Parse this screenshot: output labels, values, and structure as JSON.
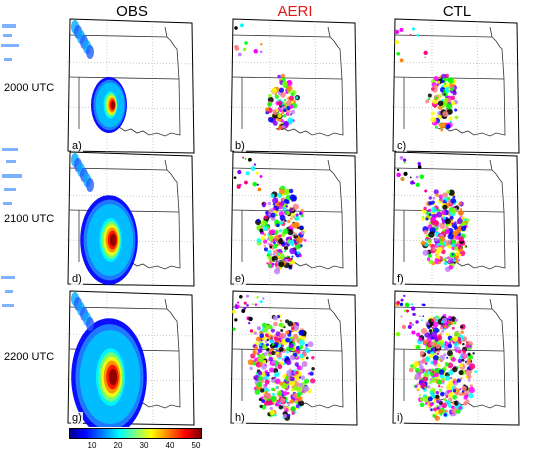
{
  "columns": {
    "obs": "OBS",
    "aeri": "AERI",
    "ctl": "CTL"
  },
  "colors": {
    "aeri_title": "#e01818"
  },
  "rows": [
    "2000 UTC",
    "2100 UTC",
    "2200 UTC"
  ],
  "panels": [
    {
      "label": "a)"
    },
    {
      "label": "b)"
    },
    {
      "label": "c)"
    },
    {
      "label": "d)"
    },
    {
      "label": "e)"
    },
    {
      "label": "f)"
    },
    {
      "label": "g)"
    },
    {
      "label": "h)"
    },
    {
      "label": "i)"
    }
  ],
  "colorbar": {
    "ticks": [
      "10",
      "20",
      "30",
      "40",
      "50"
    ]
  }
}
